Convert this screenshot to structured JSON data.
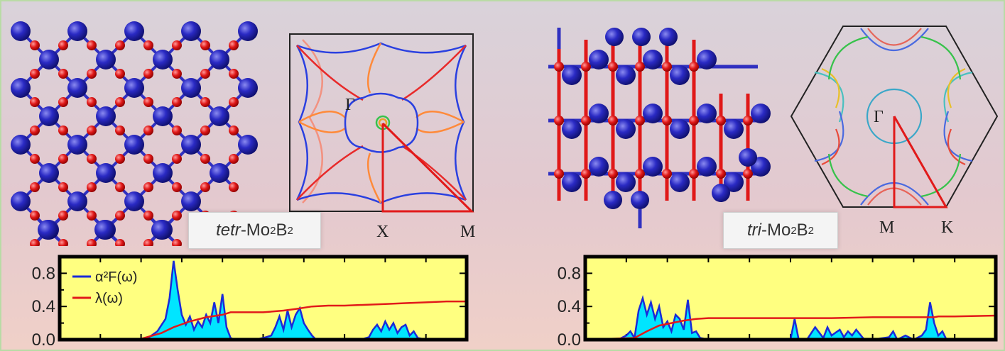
{
  "left_panel": {
    "label_italic": "tetr",
    "label_rest_a": "-Mo",
    "label_sub1": "2",
    "label_rest_b": "B",
    "label_sub2": "2",
    "bz": {
      "gamma": "Γ",
      "k1": "X",
      "k2": "M"
    }
  },
  "right_panel": {
    "label_italic": "tri",
    "label_rest_a": "-Mo",
    "label_sub1": "2",
    "label_rest_b": "B",
    "label_sub2": "2",
    "bz": {
      "gamma": "Γ",
      "k1": "M",
      "k2": "K"
    }
  },
  "colors": {
    "atom_mo": "#2323b8",
    "atom_b": "#e01818",
    "plot_bg": "#ffff80",
    "a2f_fill": "#00e5ff",
    "a2f_line": "#1a2ad8",
    "lambda_line": "#e11a1a"
  },
  "chart_data": [
    {
      "type": "area",
      "xlim": [
        0,
        1
      ],
      "ylim": [
        0,
        1.0
      ],
      "yticks": [
        "0.8",
        "0.4",
        "0.0"
      ],
      "legend": [
        "α²F(ω)",
        "λ(ω)"
      ],
      "legend_position": "top-left",
      "series": [
        {
          "name": "α²F(ω)",
          "x": [
            0.0,
            0.1,
            0.2,
            0.22,
            0.24,
            0.26,
            0.27,
            0.28,
            0.29,
            0.3,
            0.31,
            0.32,
            0.33,
            0.34,
            0.35,
            0.36,
            0.37,
            0.38,
            0.39,
            0.4,
            0.41,
            0.42,
            0.43,
            0.44,
            0.45,
            0.46,
            0.47,
            0.48,
            0.5,
            0.52,
            0.53,
            0.54,
            0.55,
            0.56,
            0.57,
            0.58,
            0.59,
            0.6,
            0.61,
            0.62,
            0.63,
            0.64,
            0.66,
            0.68,
            0.7,
            0.72,
            0.74,
            0.76,
            0.77,
            0.78,
            0.79,
            0.8,
            0.81,
            0.82,
            0.83,
            0.84,
            0.85,
            0.86,
            0.87,
            0.88,
            0.9,
            0.92,
            1.0
          ],
          "y": [
            0.0,
            0.0,
            0.01,
            0.03,
            0.1,
            0.25,
            0.5,
            0.95,
            0.6,
            0.3,
            0.18,
            0.28,
            0.12,
            0.22,
            0.15,
            0.3,
            0.2,
            0.45,
            0.2,
            0.55,
            0.15,
            0.02,
            0.0,
            0.0,
            0.0,
            0.0,
            0.0,
            0.0,
            0.02,
            0.05,
            0.15,
            0.28,
            0.12,
            0.35,
            0.15,
            0.3,
            0.38,
            0.2,
            0.12,
            0.05,
            0.0,
            0.0,
            0.0,
            0.0,
            0.0,
            0.0,
            0.0,
            0.03,
            0.12,
            0.18,
            0.1,
            0.22,
            0.12,
            0.2,
            0.08,
            0.15,
            0.18,
            0.05,
            0.1,
            0.02,
            0.0,
            0.0,
            0.0
          ]
        },
        {
          "name": "λ(ω)",
          "x": [
            0.0,
            0.2,
            0.25,
            0.28,
            0.32,
            0.36,
            0.4,
            0.42,
            0.45,
            0.5,
            0.55,
            0.58,
            0.62,
            0.66,
            0.7,
            0.75,
            0.8,
            0.85,
            0.9,
            0.95,
            1.0
          ],
          "y": [
            0.0,
            0.01,
            0.08,
            0.15,
            0.22,
            0.27,
            0.3,
            0.33,
            0.33,
            0.33,
            0.35,
            0.37,
            0.4,
            0.41,
            0.41,
            0.42,
            0.43,
            0.44,
            0.45,
            0.46,
            0.46
          ]
        }
      ]
    },
    {
      "type": "area",
      "xlim": [
        0,
        1
      ],
      "ylim": [
        0,
        1.0
      ],
      "yticks": [
        "0.8",
        "0.4",
        "0.0"
      ],
      "series": [
        {
          "name": "α²F(ω)",
          "x": [
            0.0,
            0.08,
            0.1,
            0.11,
            0.12,
            0.13,
            0.14,
            0.15,
            0.16,
            0.17,
            0.18,
            0.19,
            0.2,
            0.21,
            0.22,
            0.23,
            0.24,
            0.25,
            0.26,
            0.27,
            0.28,
            0.3,
            0.5,
            0.51,
            0.52,
            0.53,
            0.54,
            0.56,
            0.58,
            0.59,
            0.6,
            0.62,
            0.63,
            0.64,
            0.65,
            0.66,
            0.68,
            0.7,
            0.74,
            0.75,
            0.76,
            0.78,
            0.8,
            0.82,
            0.83,
            0.84,
            0.85,
            0.86,
            0.87,
            0.88,
            0.9,
            0.92,
            1.0
          ],
          "y": [
            0.0,
            0.0,
            0.05,
            0.1,
            0.02,
            0.35,
            0.5,
            0.3,
            0.45,
            0.25,
            0.4,
            0.15,
            0.22,
            0.1,
            0.3,
            0.25,
            0.12,
            0.48,
            0.08,
            0.1,
            0.02,
            0.0,
            0.0,
            0.25,
            0.0,
            0.0,
            0.0,
            0.15,
            0.02,
            0.15,
            0.05,
            0.12,
            0.03,
            0.1,
            0.05,
            0.12,
            0.0,
            0.0,
            0.03,
            0.1,
            0.0,
            0.05,
            0.0,
            0.05,
            0.12,
            0.45,
            0.2,
            0.05,
            0.1,
            0.0,
            0.0,
            0.0,
            0.0
          ]
        },
        {
          "name": "λ(ω)",
          "x": [
            0.0,
            0.12,
            0.15,
            0.18,
            0.21,
            0.24,
            0.27,
            0.3,
            0.4,
            0.5,
            0.6,
            0.7,
            0.8,
            0.85,
            0.86,
            0.9,
            1.0
          ],
          "y": [
            0.0,
            0.02,
            0.1,
            0.17,
            0.2,
            0.23,
            0.25,
            0.26,
            0.26,
            0.26,
            0.26,
            0.27,
            0.27,
            0.27,
            0.28,
            0.28,
            0.29
          ]
        }
      ]
    }
  ]
}
